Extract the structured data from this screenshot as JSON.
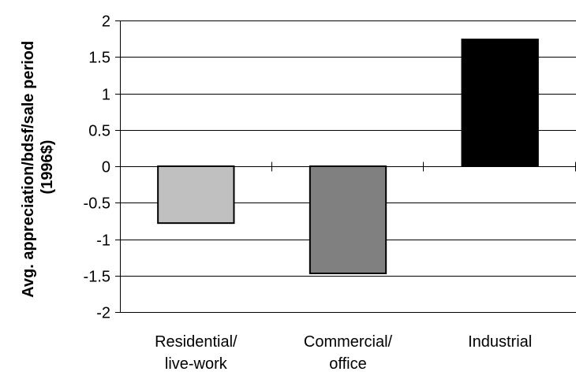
{
  "chart_data": {
    "type": "bar",
    "title": "",
    "xlabel": "",
    "ylabel": [
      "Avg. appreciation/bdsf/sale period",
      "(1996$)"
    ],
    "categories": [
      [
        "Residential/",
        "live-work"
      ],
      [
        "Commercial/",
        "office"
      ],
      [
        "Industrial"
      ]
    ],
    "values": [
      -0.78,
      -1.47,
      1.74
    ],
    "colors": [
      "#c0c0c0",
      "#808080",
      "#000000"
    ],
    "ylim": [
      -2,
      2
    ],
    "yticks": [
      2,
      1.5,
      1,
      0.5,
      0,
      -0.5,
      -1,
      -1.5,
      -2
    ],
    "ytick_labels": [
      "2",
      "1.5",
      "1",
      "0.5",
      "0",
      "-0.5",
      "-1",
      "-1.5",
      "-2"
    ],
    "grid": true,
    "legend": "none"
  }
}
